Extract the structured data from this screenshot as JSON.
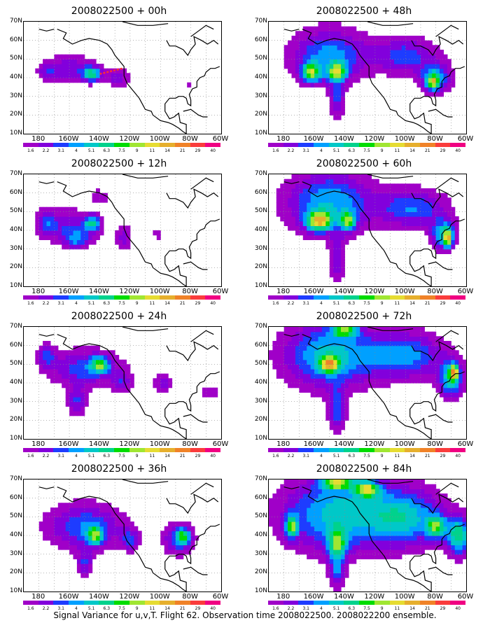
{
  "caption": "Signal Variance for u,v,T. Flight 62. Observation time 2008022500. 2008022200 ensemble.",
  "colors": {
    "levels": [
      "#A000C8",
      "#8200DC",
      "#1E3CFF",
      "#00A0FF",
      "#00C8C8",
      "#00D28C",
      "#00DC00",
      "#A0E632",
      "#E6DC32",
      "#E6AF2D",
      "#F08228",
      "#FA3C3C",
      "#F00082"
    ],
    "coast": "#000000",
    "obs_track": "#ff3030"
  },
  "chart_data": [
    {
      "type": "heatmap",
      "title": "2008022500 + 00h",
      "lead_hours": 0,
      "x_ticks": [
        "180",
        "160W",
        "140W",
        "120W",
        "100W",
        "80W",
        "60W"
      ],
      "y_ticks": [
        "70N",
        "60N",
        "50N",
        "40N",
        "30N",
        "20N",
        "10N"
      ],
      "levels": [
        "1.6",
        "2.2",
        "3.1",
        "4",
        "5.1",
        "6.3",
        "7.5",
        "9",
        "11",
        "14",
        "21",
        "29",
        "40"
      ],
      "blobs": [
        [
          -160,
          45,
          16,
          7,
          3
        ],
        [
          -145,
          42,
          6,
          4,
          6
        ],
        [
          -175,
          43,
          6,
          5,
          2
        ],
        [
          -128,
          40,
          8,
          5,
          2.5
        ],
        [
          -81,
          36,
          2,
          2,
          1.5
        ]
      ],
      "obs_track": [
        [
          -140,
          42
        ],
        [
          -125,
          45
        ]
      ]
    },
    {
      "type": "heatmap",
      "title": "2008022500 + 12h",
      "lead_hours": 12,
      "x_ticks": [
        "180",
        "160W",
        "140W",
        "120W",
        "100W",
        "80W",
        "60W"
      ],
      "y_ticks": [
        "70N",
        "60N",
        "50N",
        "40N",
        "30N",
        "20N",
        "10N"
      ],
      "levels": [
        "1.6",
        "2.2",
        "3.1",
        "4",
        "5.1",
        "6.3",
        "7.5",
        "9",
        "11",
        "14",
        "21",
        "29",
        "40"
      ],
      "blobs": [
        [
          -160,
          42,
          20,
          9,
          3
        ],
        [
          -145,
          44,
          5,
          4,
          5
        ],
        [
          -155,
          35,
          8,
          5,
          3
        ],
        [
          -175,
          45,
          6,
          6,
          2.5
        ],
        [
          -124,
          36,
          5,
          7,
          2.5
        ],
        [
          -102,
          38,
          3,
          3,
          1.5
        ],
        [
          -140,
          58,
          6,
          4,
          2
        ]
      ]
    },
    {
      "type": "heatmap",
      "title": "2008022500 + 24h",
      "lead_hours": 24,
      "x_ticks": [
        "180",
        "160W",
        "140W",
        "120W",
        "100W",
        "80W",
        "60W"
      ],
      "y_ticks": [
        "70N",
        "60N",
        "50N",
        "40N",
        "30N",
        "20N",
        "10N"
      ],
      "levels": [
        "1.6",
        "2.2",
        "3.1",
        "4",
        "5.1",
        "6.3",
        "7.5",
        "9",
        "11",
        "14",
        "21",
        "29",
        "40"
      ],
      "blobs": [
        [
          -150,
          48,
          24,
          10,
          3.5
        ],
        [
          -140,
          50,
          6,
          4,
          6
        ],
        [
          -155,
          30,
          6,
          8,
          3
        ],
        [
          -175,
          55,
          6,
          6,
          3
        ],
        [
          -125,
          40,
          6,
          6,
          2.5
        ],
        [
          -98,
          40,
          7,
          5,
          2.5
        ],
        [
          -68,
          35,
          6,
          4,
          2
        ]
      ]
    },
    {
      "type": "heatmap",
      "title": "2008022500 + 36h",
      "lead_hours": 36,
      "x_ticks": [
        "180",
        "160W",
        "140W",
        "120W",
        "100W",
        "80W",
        "60W"
      ],
      "y_ticks": [
        "70N",
        "60N",
        "50N",
        "40N",
        "30N",
        "20N",
        "10N"
      ],
      "levels": [
        "1.6",
        "2.2",
        "3.1",
        "4",
        "5.1",
        "6.3",
        "7.5",
        "9",
        "11",
        "14",
        "21",
        "29",
        "40"
      ],
      "blobs": [
        [
          -150,
          45,
          25,
          12,
          4
        ],
        [
          -143,
          40,
          5,
          5,
          6
        ],
        [
          -150,
          25,
          5,
          8,
          3
        ],
        [
          -120,
          38,
          6,
          6,
          3
        ],
        [
          -88,
          38,
          10,
          8,
          4
        ],
        [
          -85,
          40,
          4,
          4,
          5
        ]
      ]
    },
    {
      "type": "heatmap",
      "title": "2008022500 + 48h",
      "lead_hours": 48,
      "x_ticks": [
        "180",
        "160W",
        "140W",
        "120W",
        "100W",
        "80W",
        "60W"
      ],
      "y_ticks": [
        "70N",
        "60N",
        "50N",
        "40N",
        "30N",
        "20N",
        "10N"
      ],
      "levels": [
        "1.6",
        "2.2",
        "3.1",
        "4",
        "5.1",
        "6.3",
        "7.5",
        "9",
        "11",
        "14",
        "21",
        "29",
        "40"
      ],
      "blobs": [
        [
          -150,
          52,
          25,
          14,
          4.5
        ],
        [
          -162,
          43,
          6,
          5,
          7
        ],
        [
          -145,
          43,
          6,
          5,
          7
        ],
        [
          -145,
          28,
          5,
          10,
          3
        ],
        [
          -100,
          52,
          20,
          10,
          3.5
        ],
        [
          -80,
          40,
          10,
          8,
          4.5
        ],
        [
          -82,
          38,
          4,
          4,
          6
        ]
      ]
    },
    {
      "type": "heatmap",
      "title": "2008022500 + 60h",
      "lead_hours": 60,
      "x_ticks": [
        "180",
        "160W",
        "140W",
        "120W",
        "100W",
        "80W",
        "60W"
      ],
      "y_ticks": [
        "70N",
        "60N",
        "50N",
        "40N",
        "30N",
        "20N",
        "10N"
      ],
      "levels": [
        "1.6",
        "2.2",
        "3.1",
        "4",
        "5.1",
        "6.3",
        "7.5",
        "9",
        "11",
        "14",
        "21",
        "29",
        "40"
      ],
      "blobs": [
        [
          -150,
          55,
          28,
          16,
          5
        ],
        [
          -157,
          45,
          8,
          5,
          8
        ],
        [
          -138,
          45,
          5,
          5,
          6
        ],
        [
          -145,
          25,
          5,
          12,
          3
        ],
        [
          -95,
          52,
          22,
          10,
          4
        ],
        [
          -75,
          38,
          8,
          8,
          5
        ],
        [
          -72,
          36,
          3,
          5,
          6.5
        ]
      ]
    },
    {
      "type": "heatmap",
      "title": "2008022500 + 72h",
      "lead_hours": 72,
      "x_ticks": [
        "180",
        "160W",
        "140W",
        "120W",
        "100W",
        "80W",
        "60W"
      ],
      "y_ticks": [
        "70N",
        "60N",
        "50N",
        "40N",
        "30N",
        "20N",
        "10N"
      ],
      "levels": [
        "1.6",
        "2.2",
        "3.1",
        "4",
        "5.1",
        "6.3",
        "7.5",
        "9",
        "11",
        "14",
        "21",
        "29",
        "40"
      ],
      "blobs": [
        [
          -150,
          55,
          30,
          17,
          5.5
        ],
        [
          -150,
          50,
          6,
          4,
          7
        ],
        [
          -140,
          68,
          8,
          3,
          6.5
        ],
        [
          -145,
          25,
          6,
          12,
          3.5
        ],
        [
          -100,
          55,
          25,
          12,
          4.5
        ],
        [
          -70,
          42,
          8,
          10,
          5.5
        ],
        [
          -68,
          46,
          3,
          4,
          7
        ]
      ]
    },
    {
      "type": "heatmap",
      "title": "2008022500 + 84h",
      "lead_hours": 84,
      "x_ticks": [
        "180",
        "160W",
        "140W",
        "120W",
        "100W",
        "80W",
        "60W"
      ],
      "y_ticks": [
        "70N",
        "60N",
        "50N",
        "40N",
        "30N",
        "20N",
        "10N"
      ],
      "levels": [
        "1.6",
        "2.2",
        "3.1",
        "4",
        "5.1",
        "6.3",
        "7.5",
        "9",
        "11",
        "14",
        "21",
        "29",
        "40"
      ],
      "blobs": [
        [
          -145,
          52,
          35,
          20,
          5.5
        ],
        [
          -145,
          68,
          10,
          3,
          7
        ],
        [
          -125,
          65,
          8,
          4,
          7
        ],
        [
          -175,
          45,
          4,
          6,
          6.5
        ],
        [
          -145,
          35,
          6,
          8,
          6
        ],
        [
          -145,
          20,
          5,
          8,
          3.5
        ],
        [
          -100,
          50,
          25,
          15,
          5
        ],
        [
          -65,
          40,
          8,
          10,
          6.5
        ],
        [
          -80,
          45,
          6,
          6,
          6
        ]
      ]
    }
  ]
}
